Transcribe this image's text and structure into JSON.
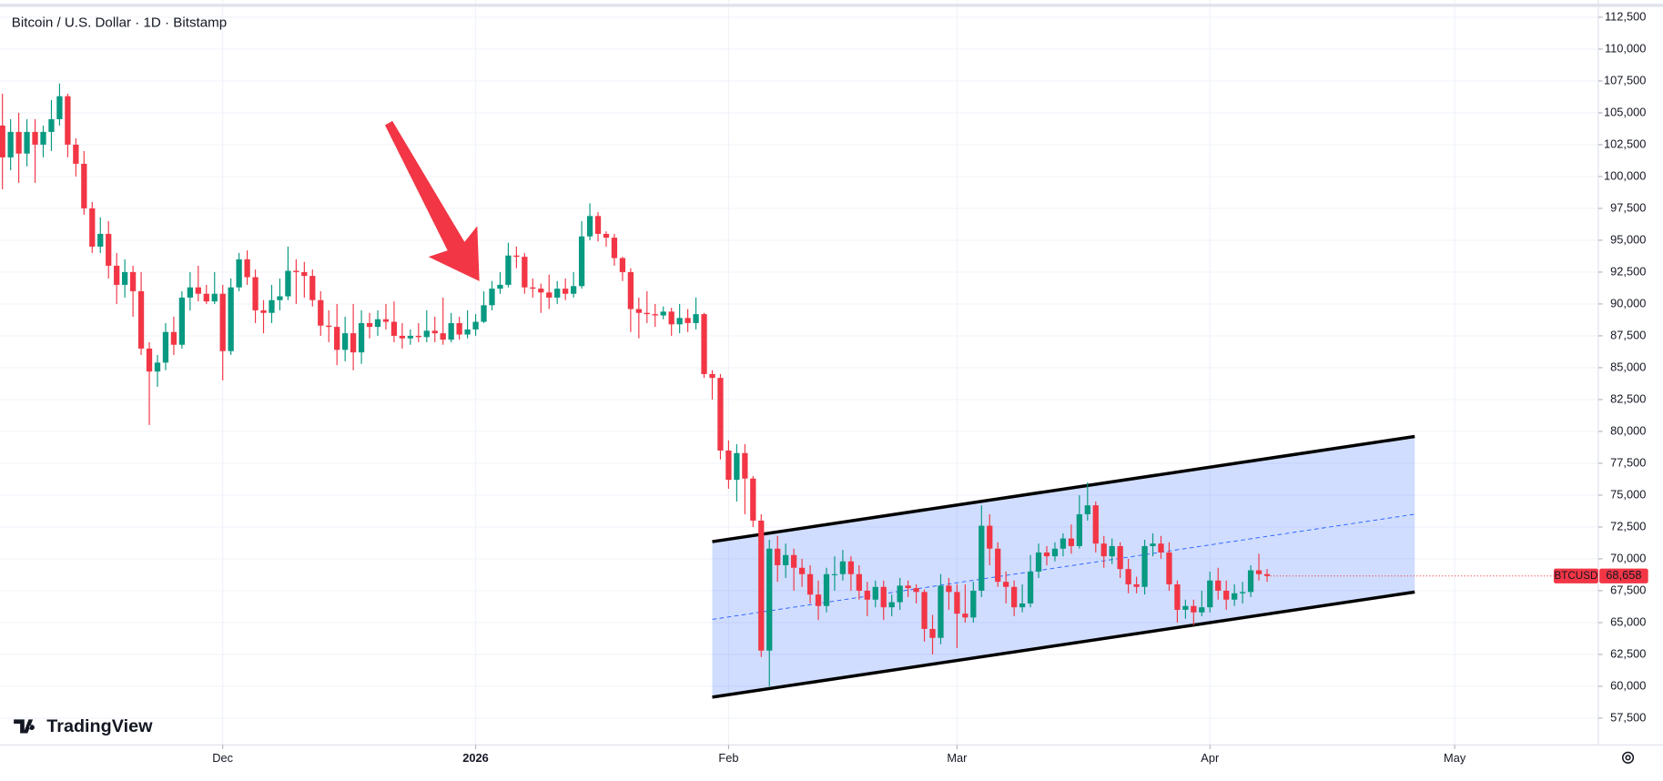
{
  "chart_data": {
    "type": "candlestick",
    "title": "Bitcoin / U.S. Dollar · 1D · Bitstamp",
    "logo": "TradingView",
    "up_color": "#089981",
    "down_color": "#f23645",
    "grid": true,
    "xlim": [
      -0.3,
      195.6
    ],
    "xticks": [
      {
        "value": 27,
        "label": "Dec"
      },
      {
        "value": 58,
        "label": "2026"
      },
      {
        "value": 89,
        "label": "Feb"
      },
      {
        "value": 117,
        "label": "Mar"
      },
      {
        "value": 148,
        "label": "Apr"
      },
      {
        "value": 178,
        "label": "May"
      }
    ],
    "ylim": [
      55400,
      113850
    ],
    "yticks": [
      {
        "value": 57500,
        "label": "57,500"
      },
      {
        "value": 60000,
        "label": "60,000"
      },
      {
        "value": 62500,
        "label": "62,500"
      },
      {
        "value": 65000,
        "label": "65,000"
      },
      {
        "value": 67500,
        "label": "67,500"
      },
      {
        "value": 70000,
        "label": "70,000"
      },
      {
        "value": 72500,
        "label": "72,500"
      },
      {
        "value": 75000,
        "label": "75,000"
      },
      {
        "value": 77500,
        "label": "77,500"
      },
      {
        "value": 80000,
        "label": "80,000"
      },
      {
        "value": 82500,
        "label": "82,500"
      },
      {
        "value": 85000,
        "label": "85,000"
      },
      {
        "value": 87500,
        "label": "87,500"
      },
      {
        "value": 90000,
        "label": "90,000"
      },
      {
        "value": 92500,
        "label": "92,500"
      },
      {
        "value": 95000,
        "label": "95,000"
      },
      {
        "value": 97500,
        "label": "97,500"
      },
      {
        "value": 100000,
        "label": "100,000"
      },
      {
        "value": 102500,
        "label": "102,500"
      },
      {
        "value": 105000,
        "label": "105,000"
      },
      {
        "value": 107500,
        "label": "107,500"
      },
      {
        "value": 110000,
        "label": "110,000"
      },
      {
        "value": 112500,
        "label": "112,500"
      }
    ],
    "price_tag": {
      "name": "BTCUSD",
      "value_label": "68,658",
      "color": "#f23645"
    },
    "channel": {
      "color": "#2962ff",
      "upper": [
        [
          87.0,
          71350
        ],
        [
          173.1,
          79600
        ]
      ],
      "middle": [
        [
          87.0,
          65250
        ],
        [
          173.1,
          73500
        ]
      ],
      "lower": [
        [
          87.0,
          59150
        ],
        [
          173.1,
          67400
        ]
      ]
    },
    "ohlc": [
      [
        104000,
        106500,
        99000,
        101500
      ],
      [
        101500,
        104500,
        100500,
        103500
      ],
      [
        103500,
        105000,
        99500,
        101800
      ],
      [
        101800,
        104500,
        100800,
        103500
      ],
      [
        103500,
        104500,
        99500,
        102500
      ],
      [
        102500,
        104000,
        101500,
        103500
      ],
      [
        103500,
        106000,
        102000,
        104500
      ],
      [
        104500,
        107300,
        104000,
        106300
      ],
      [
        106300,
        106500,
        101500,
        102500
      ],
      [
        102500,
        103000,
        100000,
        101000
      ],
      [
        101000,
        102000,
        97000,
        97500
      ],
      [
        97500,
        98000,
        94000,
        94500
      ],
      [
        94500,
        96800,
        94000,
        95500
      ],
      [
        95500,
        96500,
        92000,
        93000
      ],
      [
        93000,
        94000,
        90000,
        91500
      ],
      [
        91500,
        93500,
        90500,
        92500
      ],
      [
        92500,
        93000,
        89000,
        91000
      ],
      [
        91000,
        92500,
        86000,
        86500
      ],
      [
        86500,
        87000,
        80500,
        84700
      ],
      [
        84700,
        86000,
        83500,
        85400
      ],
      [
        85400,
        88500,
        84800,
        87800
      ],
      [
        87800,
        89000,
        86000,
        86800
      ],
      [
        86800,
        91000,
        86500,
        90500
      ],
      [
        90500,
        92500,
        89500,
        91300
      ],
      [
        91300,
        93000,
        90200,
        90800
      ],
      [
        90800,
        91500,
        90000,
        90200
      ],
      [
        90200,
        92500,
        90000,
        90800
      ],
      [
        90800,
        91500,
        84000,
        86300
      ],
      [
        86300,
        92000,
        86000,
        91300
      ],
      [
        91300,
        94000,
        91000,
        93500
      ],
      [
        93500,
        94200,
        91500,
        92100
      ],
      [
        92100,
        92700,
        88500,
        89500
      ],
      [
        89500,
        90300,
        87700,
        89300
      ],
      [
        89300,
        91500,
        88500,
        90300
      ],
      [
        90300,
        92000,
        89500,
        90600
      ],
      [
        90600,
        94500,
        90300,
        92600
      ],
      [
        92600,
        93500,
        90000,
        92500
      ],
      [
        92500,
        93300,
        90500,
        92200
      ],
      [
        92200,
        92700,
        89800,
        90300
      ],
      [
        90300,
        91000,
        87500,
        88300
      ],
      [
        88300,
        89500,
        87000,
        88200
      ],
      [
        88200,
        90000,
        85200,
        86400
      ],
      [
        86400,
        89000,
        85500,
        87700
      ],
      [
        87700,
        90000,
        84800,
        86200
      ],
      [
        86200,
        89500,
        85300,
        88500
      ],
      [
        88500,
        89300,
        87300,
        88200
      ],
      [
        88200,
        89500,
        87500,
        88800
      ],
      [
        88800,
        90000,
        88000,
        88600
      ],
      [
        88600,
        90200,
        87000,
        87500
      ],
      [
        87500,
        88500,
        86500,
        87300
      ],
      [
        87300,
        88000,
        86800,
        87500
      ],
      [
        87500,
        88500,
        87000,
        87400
      ],
      [
        87400,
        89500,
        87000,
        87900
      ],
      [
        87900,
        89000,
        87000,
        87700
      ],
      [
        87700,
        90500,
        86800,
        87200
      ],
      [
        87200,
        89300,
        87000,
        88500
      ],
      [
        88500,
        89000,
        87200,
        87600
      ],
      [
        87600,
        89500,
        87300,
        88000
      ],
      [
        88000,
        89200,
        87500,
        88600
      ],
      [
        88600,
        91000,
        88500,
        89900
      ],
      [
        89900,
        91800,
        89500,
        91200
      ],
      [
        91200,
        92500,
        90800,
        91500
      ],
      [
        91500,
        94800,
        91300,
        93800
      ],
      [
        93800,
        94500,
        92800,
        93700
      ],
      [
        93700,
        94000,
        90800,
        91300
      ],
      [
        91300,
        92000,
        90500,
        91200
      ],
      [
        91200,
        91600,
        89300,
        90900
      ],
      [
        90900,
        92300,
        89600,
        90500
      ],
      [
        90500,
        91800,
        90000,
        91200
      ],
      [
        91200,
        92000,
        90300,
        90800
      ],
      [
        90800,
        92500,
        90500,
        91400
      ],
      [
        91400,
        96500,
        91200,
        95300
      ],
      [
        95300,
        97900,
        95000,
        96900
      ],
      [
        96900,
        97200,
        94900,
        95500
      ],
      [
        95500,
        95700,
        94500,
        95200
      ],
      [
        95200,
        95500,
        93000,
        93600
      ],
      [
        93600,
        93700,
        91800,
        92500
      ],
      [
        92500,
        92800,
        87800,
        89600
      ],
      [
        89600,
        90500,
        87300,
        89300
      ],
      [
        89300,
        91000,
        88500,
        89200
      ],
      [
        89200,
        90000,
        88200,
        89100
      ],
      [
        89100,
        89800,
        88800,
        89400
      ],
      [
        89400,
        89700,
        87500,
        88400
      ],
      [
        88400,
        90000,
        87700,
        88900
      ],
      [
        88900,
        89600,
        87800,
        88500
      ],
      [
        88500,
        90500,
        88000,
        89200
      ],
      [
        89200,
        89300,
        84200,
        84500
      ],
      [
        84500,
        84800,
        82500,
        84200
      ],
      [
        84200,
        84500,
        77800,
        78500
      ],
      [
        78500,
        79300,
        75500,
        76200
      ],
      [
        76200,
        79000,
        74500,
        78300
      ],
      [
        78300,
        79000,
        73500,
        76300
      ],
      [
        76300,
        76500,
        72500,
        73000
      ],
      [
        73000,
        73500,
        62300,
        62800
      ],
      [
        62800,
        71500,
        60000,
        70800
      ],
      [
        70800,
        71800,
        68200,
        69500
      ],
      [
        69500,
        71200,
        68500,
        70300
      ],
      [
        70300,
        70800,
        67500,
        69300
      ],
      [
        69300,
        70000,
        67800,
        68800
      ],
      [
        68800,
        69500,
        66500,
        67200
      ],
      [
        67200,
        68300,
        65200,
        66300
      ],
      [
        66300,
        69300,
        65800,
        68800
      ],
      [
        68800,
        70200,
        67500,
        68800
      ],
      [
        68800,
        70700,
        68300,
        69800
      ],
      [
        69800,
        70200,
        67500,
        68800
      ],
      [
        68800,
        69500,
        66800,
        67500
      ],
      [
        67500,
        68200,
        65500,
        66800
      ],
      [
        66800,
        68300,
        66200,
        67800
      ],
      [
        67800,
        68300,
        65200,
        66200
      ],
      [
        66200,
        67200,
        65500,
        66600
      ],
      [
        66600,
        68500,
        66000,
        67900
      ],
      [
        67900,
        68300,
        67000,
        67700
      ],
      [
        67700,
        68000,
        66500,
        67400
      ],
      [
        67400,
        67600,
        63500,
        64500
      ],
      [
        64500,
        65600,
        62500,
        63800
      ],
      [
        63800,
        68800,
        63300,
        67900
      ],
      [
        67900,
        68500,
        66000,
        67400
      ],
      [
        67400,
        68000,
        63000,
        65700
      ],
      [
        65700,
        68000,
        65000,
        65400
      ],
      [
        65400,
        68200,
        65000,
        67500
      ],
      [
        67500,
        74200,
        67000,
        72600
      ],
      [
        72600,
        73500,
        69500,
        70800
      ],
      [
        70800,
        71300,
        67800,
        68200
      ],
      [
        68200,
        69000,
        66500,
        67800
      ],
      [
        67800,
        68300,
        65500,
        66200
      ],
      [
        66200,
        68000,
        65800,
        66500
      ],
      [
        66500,
        70300,
        66200,
        69000
      ],
      [
        69000,
        71200,
        68500,
        70500
      ],
      [
        70500,
        71000,
        69500,
        70200
      ],
      [
        70200,
        71300,
        69800,
        70800
      ],
      [
        70800,
        72000,
        70200,
        71600
      ],
      [
        71600,
        72700,
        70400,
        71000
      ],
      [
        71000,
        75000,
        70800,
        73500
      ],
      [
        73500,
        76000,
        73000,
        74200
      ],
      [
        74200,
        74500,
        70500,
        71200
      ],
      [
        71200,
        71800,
        69300,
        70200
      ],
      [
        70200,
        71600,
        69600,
        71000
      ],
      [
        71000,
        71300,
        68500,
        69200
      ],
      [
        69200,
        70000,
        67300,
        68000
      ],
      [
        68000,
        68600,
        67300,
        67800
      ],
      [
        67800,
        71500,
        67200,
        71000
      ],
      [
        71000,
        72000,
        70200,
        71200
      ],
      [
        71200,
        71800,
        70000,
        70500
      ],
      [
        70500,
        71300,
        67500,
        68000
      ],
      [
        68000,
        68300,
        65000,
        66000
      ],
      [
        66000,
        66800,
        65300,
        66300
      ],
      [
        66300,
        66800,
        64800,
        65800
      ],
      [
        65800,
        67500,
        65500,
        66200
      ],
      [
        66200,
        69000,
        65800,
        68300
      ],
      [
        68300,
        69300,
        66800,
        67500
      ],
      [
        67500,
        68300,
        66000,
        66800
      ],
      [
        66800,
        68000,
        66300,
        67300
      ],
      [
        67300,
        68200,
        66500,
        67400
      ],
      [
        67400,
        69500,
        67000,
        69100
      ],
      [
        69100,
        70400,
        68300,
        68800
      ],
      [
        68800,
        69200,
        68200,
        68658
      ]
    ]
  }
}
